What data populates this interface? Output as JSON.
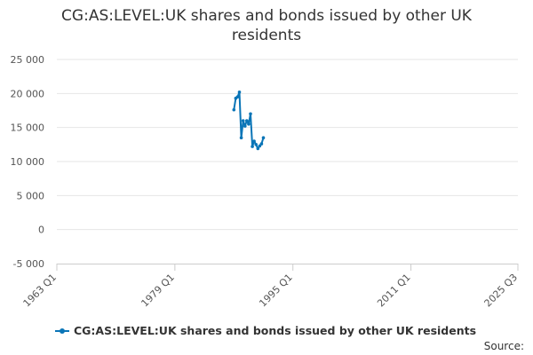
{
  "chart_data": {
    "type": "line",
    "title": "CG:AS:LEVEL:UK shares and bonds issued by other UK residents",
    "ylim": [
      -5000,
      25000
    ],
    "y_ticks": [
      "25 000",
      "20 000",
      "15 000",
      "10 000",
      "5 000",
      "0",
      "-5 000"
    ],
    "y_tick_values": [
      25000,
      20000,
      15000,
      10000,
      5000,
      0,
      -5000
    ],
    "xlim": [
      "1963 Q1",
      "2025 Q3"
    ],
    "x_ticks": [
      "1963 Q1",
      "1979 Q1",
      "1995 Q1",
      "2011 Q1",
      "2025 Q3"
    ],
    "x_tick_values": [
      "1963 Q1",
      "1979 Q1",
      "1995 Q1",
      "2011 Q1",
      "2025 Q3"
    ],
    "grid": true,
    "legend_position": "bottom-left",
    "series": [
      {
        "name": "CG:AS:LEVEL:UK shares and bonds issued by other UK residents",
        "color": "#0a75b7",
        "points": [
          [
            "1987 Q1",
            17600
          ],
          [
            "1987 Q2",
            19300
          ],
          [
            "1987 Q3",
            19500
          ],
          [
            "1987 Q4",
            20200
          ],
          [
            "1988 Q1",
            13500
          ],
          [
            "1988 Q2",
            16000
          ],
          [
            "1988 Q3",
            15200
          ],
          [
            "1988 Q4",
            16000
          ],
          [
            "1989 Q1",
            15500
          ],
          [
            "1989 Q2",
            17000
          ],
          [
            "1989 Q3",
            12200
          ],
          [
            "1989 Q4",
            13000
          ],
          [
            "1990 Q1",
            12500
          ],
          [
            "1990 Q2",
            11900
          ],
          [
            "1990 Q3",
            12300
          ],
          [
            "1990 Q4",
            12600
          ],
          [
            "1991 Q1",
            13500
          ]
        ]
      }
    ]
  },
  "footer": {
    "source_label": "Source:"
  }
}
